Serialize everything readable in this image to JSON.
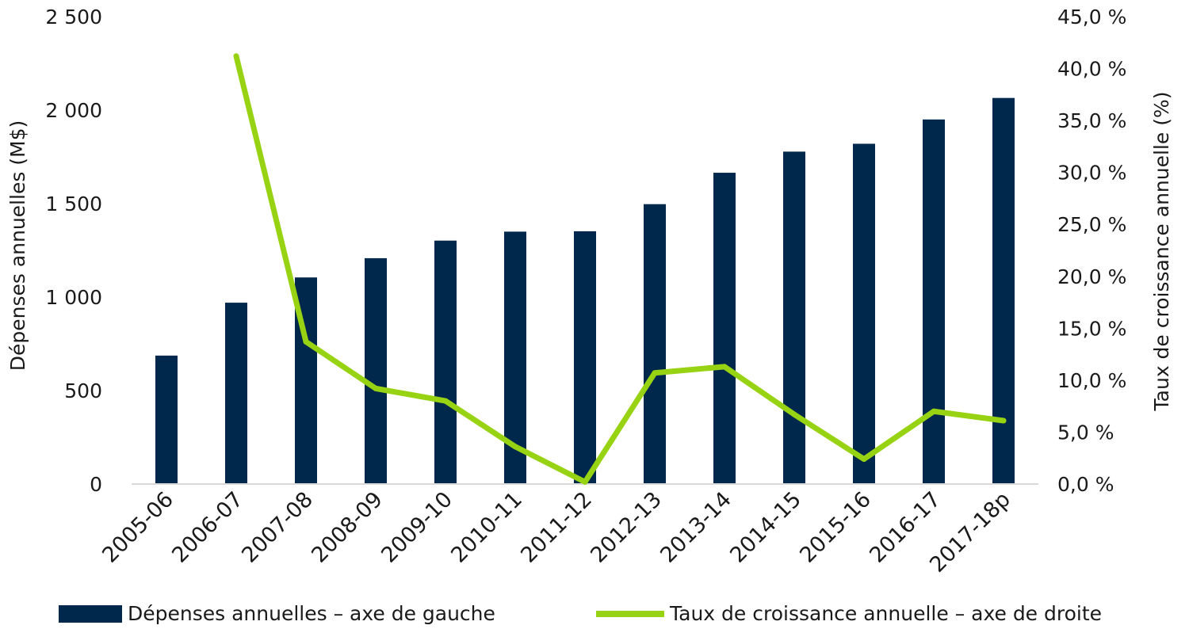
{
  "colors": {
    "bar": "#00274c",
    "line": "#97d312",
    "axis": "#d9d9d9",
    "text": "#1a1a1a"
  },
  "chart_data": {
    "type": "bar",
    "categories": [
      "2005-06",
      "2006-07",
      "2007-08",
      "2008-09",
      "2009-10",
      "2010-11",
      "2011-12",
      "2012-13",
      "2013-14",
      "2014-15",
      "2015-16",
      "2016-17",
      "2017-18p"
    ],
    "series": [
      {
        "name": "Dépenses annuelles – axe de gauche",
        "type": "bar",
        "axis": "left",
        "values": [
          687,
          970,
          1105,
          1208,
          1302,
          1350,
          1352,
          1497,
          1665,
          1778,
          1820,
          1950,
          2065
        ]
      },
      {
        "name": "Taux de croissance annuelle – axe de droite",
        "type": "line",
        "axis": "right",
        "values": [
          null,
          41.2,
          13.7,
          9.2,
          8.0,
          3.6,
          0.2,
          10.7,
          11.3,
          6.7,
          2.4,
          7.0,
          6.1
        ]
      }
    ],
    "ylabel": "Dépenses annuelles (M$)",
    "y2label": "Taux de croissance annuelle (%)",
    "ylim": [
      0,
      2500
    ],
    "y2lim": [
      0,
      45
    ],
    "yticks": [
      "0",
      "500",
      "1 000",
      "1 500",
      "2 000",
      "2 500"
    ],
    "y2ticks": [
      "0,0 %",
      "5,0 %",
      "10,0 %",
      "15,0 %",
      "20,0 %",
      "25,0 %",
      "30,0 %",
      "35,0 %",
      "40,0 %",
      "45,0 %"
    ],
    "grid": false,
    "legend_position": "bottom"
  }
}
